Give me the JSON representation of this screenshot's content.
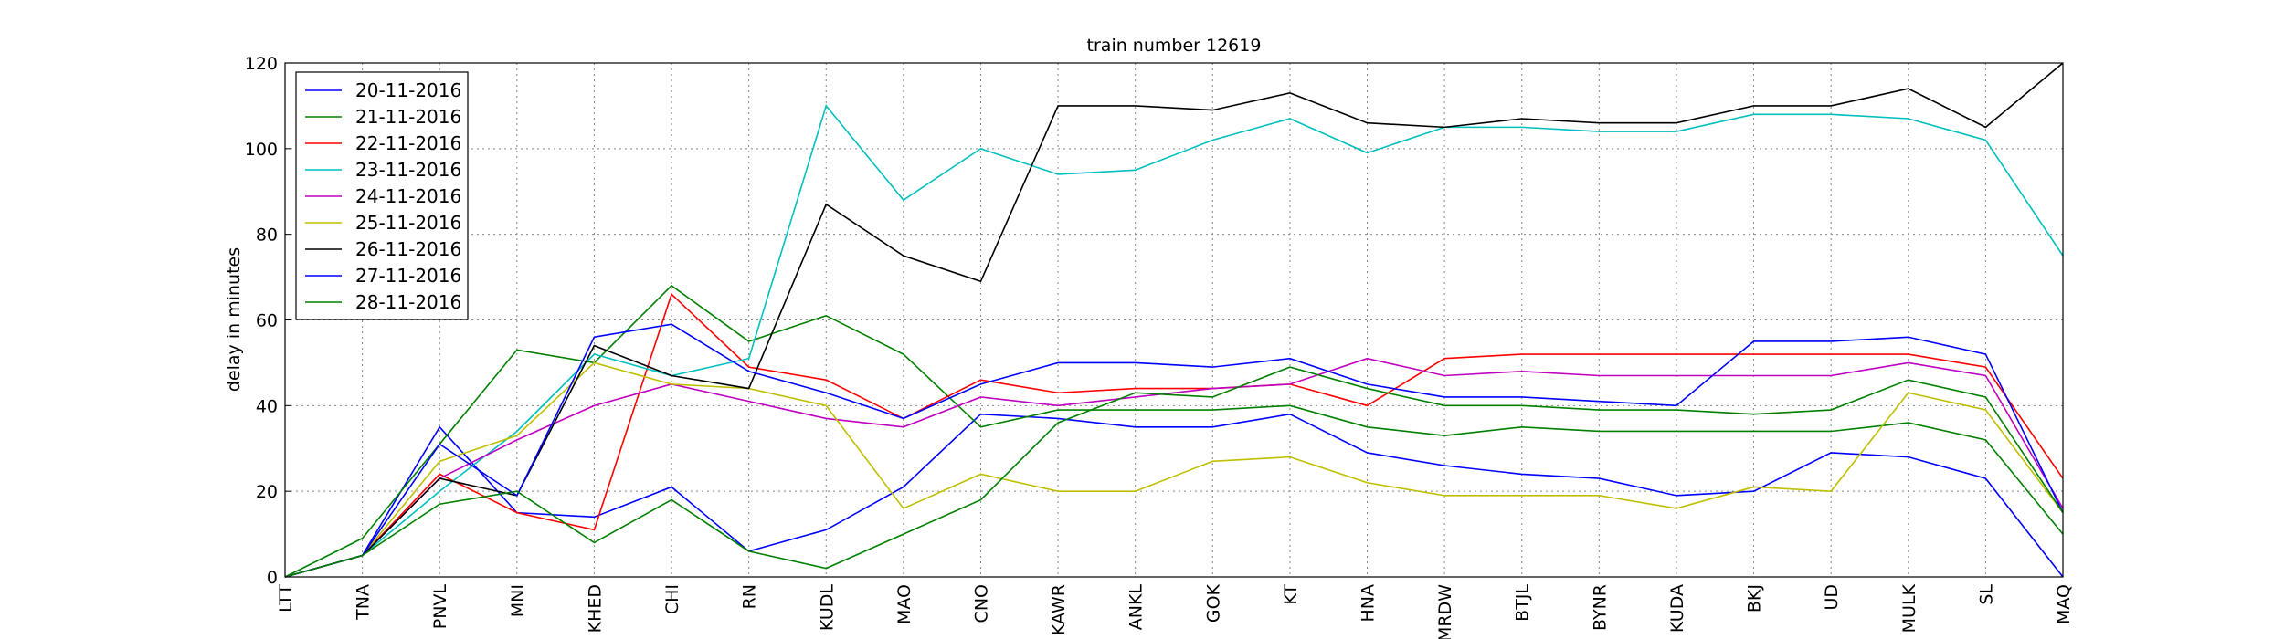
{
  "chart_data": {
    "type": "line",
    "title": "train number 12619",
    "y_label": "delay in minutes",
    "categories": [
      "LTT",
      "TNA",
      "PNVL",
      "MNI",
      "KHED",
      "CHI",
      "RN",
      "KUDL",
      "MAO",
      "CNO",
      "KAWR",
      "ANKL",
      "GOK",
      "KT",
      "HNA",
      "MRDW",
      "BTJL",
      "BYNR",
      "KUDA",
      "BKJ",
      "UD",
      "MULK",
      "SL",
      "MAQ"
    ],
    "ylim": [
      0,
      120
    ],
    "yticks": [
      0,
      20,
      40,
      60,
      80,
      100,
      120
    ],
    "grid": true,
    "legend": "upper left",
    "series": [
      {
        "name": "20-11-2016",
        "color": "#0000ff",
        "values": [
          0,
          5,
          35,
          15,
          14,
          21,
          6,
          11,
          21,
          38,
          37,
          35,
          35,
          38,
          29,
          26,
          24,
          23,
          19,
          20,
          29,
          28,
          23,
          0
        ]
      },
      {
        "name": "21-11-2016",
        "color": "#008000",
        "values": [
          0,
          9,
          31,
          53,
          50,
          68,
          55,
          61,
          52,
          35,
          39,
          39,
          39,
          40,
          35,
          33,
          35,
          34,
          34,
          34,
          34,
          36,
          32,
          10
        ]
      },
      {
        "name": "22-11-2016",
        "color": "#ff0000",
        "values": [
          0,
          5,
          24,
          15,
          11,
          66,
          49,
          46,
          37,
          46,
          43,
          44,
          44,
          45,
          40,
          51,
          52,
          52,
          52,
          52,
          52,
          52,
          49,
          23
        ]
      },
      {
        "name": "23-11-2016",
        "color": "#00bfbf",
        "values": [
          0,
          5,
          20,
          34,
          52,
          47,
          51,
          110,
          88,
          100,
          94,
          95,
          102,
          107,
          99,
          105,
          105,
          104,
          104,
          108,
          108,
          107,
          102,
          75
        ]
      },
      {
        "name": "24-11-2016",
        "color": "#bf00bf",
        "values": [
          0,
          5,
          23,
          32,
          40,
          45,
          41,
          37,
          35,
          42,
          40,
          42,
          44,
          45,
          51,
          47,
          48,
          47,
          47,
          47,
          47,
          50,
          47,
          16
        ]
      },
      {
        "name": "25-11-2016",
        "color": "#bfbf00",
        "values": [
          0,
          5,
          27,
          33,
          50,
          45,
          44,
          40,
          16,
          24,
          20,
          20,
          27,
          28,
          22,
          19,
          19,
          19,
          16,
          21,
          20,
          43,
          39,
          15
        ]
      },
      {
        "name": "26-11-2016",
        "color": "#000000",
        "values": [
          0,
          5,
          23,
          19,
          54,
          47,
          44,
          87,
          75,
          69,
          110,
          110,
          109,
          113,
          106,
          105,
          107,
          106,
          106,
          110,
          110,
          114,
          105,
          120
        ]
      },
      {
        "name": "27-11-2016",
        "color": "#0000ff",
        "values": [
          0,
          5,
          31,
          19,
          56,
          59,
          48,
          43,
          37,
          45,
          50,
          50,
          49,
          51,
          45,
          42,
          42,
          41,
          40,
          55,
          55,
          56,
          52,
          15
        ]
      },
      {
        "name": "28-11-2016",
        "color": "#008000",
        "values": [
          0,
          5,
          17,
          20,
          8,
          18,
          6,
          2,
          10,
          18,
          36,
          43,
          42,
          49,
          44,
          40,
          40,
          39,
          39,
          38,
          39,
          46,
          42,
          15
        ]
      }
    ]
  }
}
